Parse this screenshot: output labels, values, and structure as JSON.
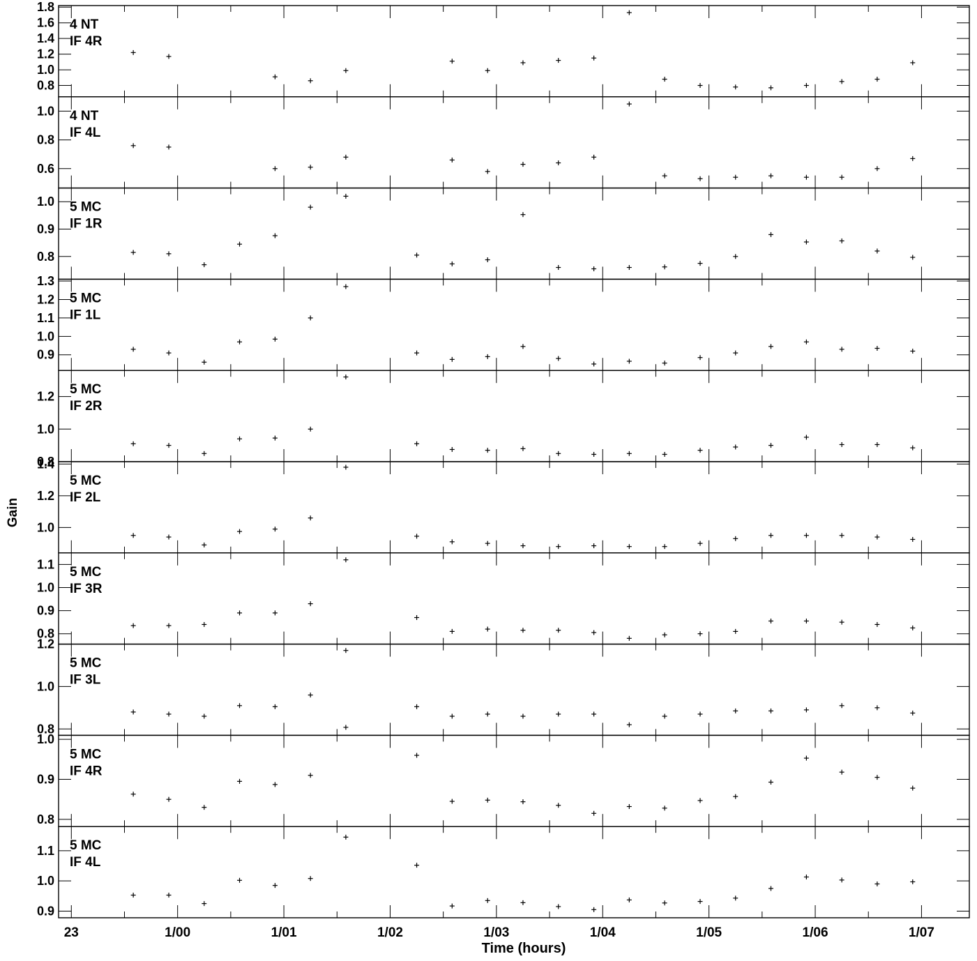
{
  "ylabel": "Gain",
  "xlabel": "Time (hours)",
  "chart_data": {
    "type": "scatter",
    "marker": "plus",
    "grid": false,
    "ylabel": "Gain",
    "xlabel": "Time (hours)",
    "x_unit": "hours after 23:00 (day boundary at 1/00)",
    "x_ticks": [
      {
        "label": "23",
        "x": 0
      },
      {
        "label": "1/00",
        "x": 1
      },
      {
        "label": "1/01",
        "x": 2
      },
      {
        "label": "1/02",
        "x": 3
      },
      {
        "label": "1/03",
        "x": 4
      },
      {
        "label": "1/04",
        "x": 5
      },
      {
        "label": "1/05",
        "x": 6
      },
      {
        "label": "1/06",
        "x": 7
      },
      {
        "label": "1/07",
        "x": 8
      }
    ],
    "xlim": [
      -0.12,
      8.45
    ],
    "panels": [
      {
        "antenna": "4 NT",
        "if": "IF 4R",
        "ylim": [
          0.655,
          1.82
        ],
        "yticks": [
          {
            "v": 0.8,
            "label": "0.8"
          },
          {
            "v": 1.0,
            "label": "1.0"
          },
          {
            "v": 1.2,
            "label": "1.2"
          },
          {
            "v": 1.4,
            "label": "1.4"
          },
          {
            "v": 1.6,
            "label": "1.6"
          },
          {
            "v": 1.8,
            "label": "1.8"
          }
        ],
        "x": [
          0.583,
          0.917,
          1.917,
          2.25,
          2.583,
          3.583,
          3.917,
          4.25,
          4.583,
          4.917,
          5.25,
          5.583,
          5.917,
          6.25,
          6.583,
          6.917,
          7.25,
          7.583,
          7.917
        ],
        "y": [
          1.22,
          1.17,
          0.91,
          0.86,
          0.99,
          1.11,
          0.99,
          1.09,
          1.12,
          1.15,
          1.73,
          0.88,
          0.8,
          0.78,
          0.77,
          0.8,
          0.85,
          0.88,
          1.09
        ]
      },
      {
        "antenna": "4 NT",
        "if": "IF 4L",
        "ylim": [
          0.465,
          1.1
        ],
        "yticks": [
          {
            "v": 0.6,
            "label": "0.6"
          },
          {
            "v": 0.8,
            "label": "0.8"
          },
          {
            "v": 1.0,
            "label": "1.0"
          }
        ],
        "x": [
          0.583,
          0.917,
          1.917,
          2.25,
          2.583,
          3.583,
          3.917,
          4.25,
          4.583,
          4.917,
          5.25,
          5.583,
          5.917,
          6.25,
          6.583,
          6.917,
          7.25,
          7.583,
          7.917
        ],
        "y": [
          0.76,
          0.75,
          0.6,
          0.61,
          0.68,
          0.66,
          0.58,
          0.63,
          0.64,
          0.68,
          1.05,
          0.55,
          0.53,
          0.54,
          0.55,
          0.54,
          0.54,
          0.6,
          0.67
        ]
      },
      {
        "antenna": "5 MC",
        "if": "IF 1R",
        "ylim": [
          0.717,
          1.05
        ],
        "yticks": [
          {
            "v": 0.8,
            "label": "0.8"
          },
          {
            "v": 0.9,
            "label": "0.9"
          },
          {
            "v": 1.0,
            "label": "1.0"
          }
        ],
        "x": [
          0.583,
          0.917,
          1.25,
          1.583,
          1.917,
          2.25,
          2.583,
          3.25,
          3.583,
          3.917,
          4.25,
          4.583,
          4.917,
          5.25,
          5.583,
          5.917,
          6.25,
          6.583,
          6.917,
          7.25,
          7.583,
          7.917
        ],
        "y": [
          0.815,
          0.81,
          0.77,
          0.845,
          0.876,
          0.98,
          1.02,
          0.805,
          0.773,
          0.788,
          0.953,
          0.76,
          0.755,
          0.76,
          0.762,
          0.775,
          0.8,
          0.88,
          0.853,
          0.857,
          0.82,
          0.797
        ]
      },
      {
        "antenna": "5 MC",
        "if": "IF 1L",
        "ylim": [
          0.815,
          1.31
        ],
        "yticks": [
          {
            "v": 0.9,
            "label": "0.9"
          },
          {
            "v": 1.0,
            "label": "1.0"
          },
          {
            "v": 1.1,
            "label": "1.1"
          },
          {
            "v": 1.2,
            "label": "1.2"
          },
          {
            "v": 1.3,
            "label": "1.3"
          }
        ],
        "x": [
          0.583,
          0.917,
          1.25,
          1.583,
          1.917,
          2.25,
          2.583,
          3.25,
          3.583,
          3.917,
          4.25,
          4.583,
          4.917,
          5.25,
          5.583,
          5.917,
          6.25,
          6.583,
          6.917,
          7.25,
          7.583,
          7.917
        ],
        "y": [
          0.93,
          0.91,
          0.86,
          0.97,
          0.985,
          1.1,
          1.27,
          0.91,
          0.875,
          0.89,
          0.945,
          0.88,
          0.85,
          0.865,
          0.855,
          0.885,
          0.91,
          0.945,
          0.97,
          0.93,
          0.935,
          0.92
        ]
      },
      {
        "antenna": "5 MC",
        "if": "IF 2R",
        "ylim": [
          0.8,
          1.36
        ],
        "yticks": [
          {
            "v": 0.8,
            "label": "0.8"
          },
          {
            "v": 1.0,
            "label": "1.0"
          },
          {
            "v": 1.2,
            "label": "1.2"
          }
        ],
        "x": [
          0.583,
          0.917,
          1.25,
          1.583,
          1.917,
          2.25,
          2.583,
          3.25,
          3.583,
          3.917,
          4.25,
          4.583,
          4.917,
          5.25,
          5.583,
          5.917,
          6.25,
          6.583,
          6.917,
          7.25,
          7.583,
          7.917
        ],
        "y": [
          0.91,
          0.9,
          0.85,
          0.94,
          0.945,
          1.0,
          1.32,
          0.91,
          0.875,
          0.87,
          0.88,
          0.85,
          0.845,
          0.85,
          0.845,
          0.87,
          0.89,
          0.9,
          0.95,
          0.905,
          0.905,
          0.885
        ]
      },
      {
        "antenna": "5 MC",
        "if": "IF 2L",
        "ylim": [
          0.84,
          1.415
        ],
        "yticks": [
          {
            "v": 1.0,
            "label": "1.0"
          },
          {
            "v": 1.2,
            "label": "1.2"
          },
          {
            "v": 1.4,
            "label": "1.4"
          }
        ],
        "x": [
          0.583,
          0.917,
          1.25,
          1.583,
          1.917,
          2.25,
          2.583,
          3.25,
          3.583,
          3.917,
          4.25,
          4.583,
          4.917,
          5.25,
          5.583,
          5.917,
          6.25,
          6.583,
          6.917,
          7.25,
          7.583,
          7.917
        ],
        "y": [
          0.95,
          0.94,
          0.89,
          0.975,
          0.99,
          1.06,
          1.38,
          0.945,
          0.91,
          0.9,
          0.885,
          0.88,
          0.885,
          0.88,
          0.88,
          0.9,
          0.93,
          0.95,
          0.95,
          0.95,
          0.94,
          0.925
        ]
      },
      {
        "antenna": "5 MC",
        "if": "IF 3R",
        "ylim": [
          0.755,
          1.15
        ],
        "yticks": [
          {
            "v": 0.8,
            "label": "0.8"
          },
          {
            "v": 0.9,
            "label": "0.9"
          },
          {
            "v": 1.0,
            "label": "1.0"
          },
          {
            "v": 1.1,
            "label": "1.1"
          }
        ],
        "x": [
          0.583,
          0.917,
          1.25,
          1.583,
          1.917,
          2.25,
          2.583,
          3.25,
          3.583,
          3.917,
          4.25,
          4.583,
          4.917,
          5.25,
          5.583,
          5.917,
          6.25,
          6.583,
          6.917,
          7.25,
          7.583,
          7.917
        ],
        "y": [
          0.835,
          0.835,
          0.84,
          0.89,
          0.89,
          0.93,
          1.12,
          0.87,
          0.81,
          0.82,
          0.815,
          0.815,
          0.805,
          0.78,
          0.795,
          0.8,
          0.81,
          0.855,
          0.855,
          0.85,
          0.84,
          0.825
        ]
      },
      {
        "antenna": "5 MC",
        "if": "IF 3L",
        "ylim": [
          0.77,
          1.2
        ],
        "yticks": [
          {
            "v": 0.8,
            "label": "0.8"
          },
          {
            "v": 1.0,
            "label": "1.0"
          },
          {
            "v": 1.2,
            "label": "1.2"
          }
        ],
        "x": [
          0.583,
          0.917,
          1.25,
          1.583,
          1.917,
          2.25,
          2.583,
          3.25,
          3.583,
          3.917,
          4.25,
          4.583,
          4.917,
          5.25,
          5.583,
          5.917,
          6.25,
          6.583,
          6.917,
          7.25,
          7.583,
          7.917
        ],
        "y": [
          0.88,
          0.87,
          0.86,
          0.91,
          0.905,
          0.96,
          1.17,
          0.905,
          0.86,
          0.87,
          0.86,
          0.87,
          0.87,
          0.82,
          0.86,
          0.87,
          0.885,
          0.885,
          0.89,
          0.91,
          0.9,
          0.875
        ]
      },
      {
        "antenna": "5 MC",
        "if": "IF 4R",
        "ylim": [
          0.782,
          1.01
        ],
        "yticks": [
          {
            "v": 0.8,
            "label": "0.8"
          },
          {
            "v": 0.9,
            "label": "0.9"
          },
          {
            "v": 1.0,
            "label": "1.0"
          }
        ],
        "x": [
          0.583,
          0.917,
          1.25,
          1.583,
          1.917,
          2.25,
          2.583,
          3.25,
          3.583,
          3.917,
          4.25,
          4.583,
          4.917,
          5.25,
          5.583,
          5.917,
          6.25,
          6.583,
          6.917,
          7.25,
          7.583,
          7.917
        ],
        "y": [
          0.863,
          0.85,
          0.83,
          0.895,
          0.887,
          0.91,
          1.03,
          0.96,
          0.845,
          0.848,
          0.844,
          0.835,
          0.815,
          0.832,
          0.828,
          0.847,
          0.857,
          0.893,
          0.953,
          0.918,
          0.905,
          0.878
        ]
      },
      {
        "antenna": "5 MC",
        "if": "IF 4L",
        "ylim": [
          0.878,
          1.18
        ],
        "yticks": [
          {
            "v": 0.9,
            "label": "0.9"
          },
          {
            "v": 1.0,
            "label": "1.0"
          },
          {
            "v": 1.1,
            "label": "1.1"
          }
        ],
        "x": [
          0.583,
          0.917,
          1.25,
          1.583,
          1.917,
          2.25,
          2.583,
          3.25,
          3.583,
          3.917,
          4.25,
          4.583,
          4.917,
          5.25,
          5.583,
          5.917,
          6.25,
          6.583,
          6.917,
          7.25,
          7.583,
          7.917
        ],
        "y": [
          0.953,
          0.953,
          0.925,
          1.002,
          0.985,
          1.008,
          1.145,
          1.052,
          0.917,
          0.935,
          0.928,
          0.915,
          0.905,
          0.937,
          0.927,
          0.932,
          0.943,
          0.975,
          1.013,
          1.003,
          0.99,
          0.997
        ]
      }
    ]
  }
}
